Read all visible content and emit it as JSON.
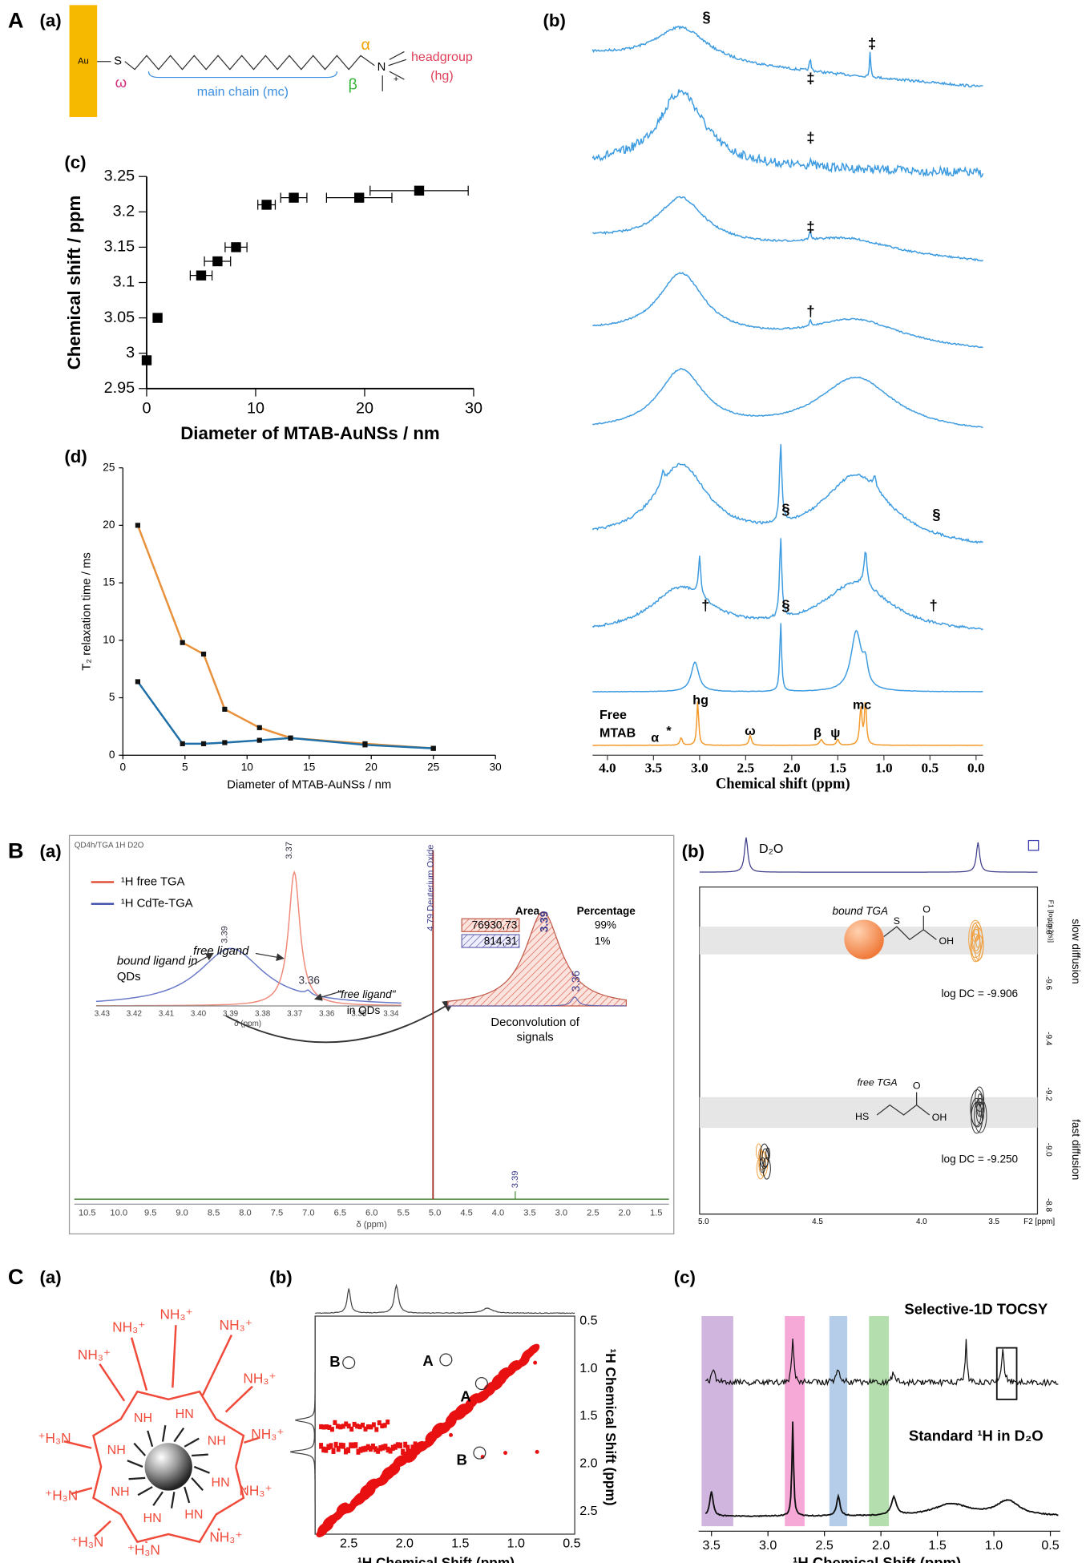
{
  "panels": {
    "A": {
      "label": "A",
      "a_label": "(a)",
      "b_label": "(b)",
      "c_label": "(c)",
      "d_label": "(d)",
      "structure": {
        "au": "Au",
        "s": "S",
        "n": "N",
        "plus": "+",
        "omega": "ω",
        "main_chain": "main chain (mc)",
        "beta": "β",
        "alpha": "α",
        "headgroup": "headgroup",
        "hg": "(hg)"
      },
      "spectra": {
        "marks": [
          "§",
          "‡",
          "‡",
          "‡",
          "‡",
          "†",
          "§",
          "§",
          "†",
          "§",
          "†"
        ],
        "free_mtab": [
          "Free",
          "MTAB"
        ],
        "peak_labels": [
          "hg",
          "mc",
          "α",
          "*",
          "ω",
          "β",
          "ψ"
        ],
        "xticks": [
          "4.0",
          "3.5",
          "3.0",
          "2.5",
          "2.0",
          "1.5",
          "1.0",
          "0.5",
          "0.0"
        ],
        "xlabel": "Chemical shift (ppm)"
      }
    },
    "B": {
      "label": "B",
      "a_label": "(a)",
      "b_label": "(b)",
      "a": {
        "header": "QD4h/TGA 1H D2O",
        "legend": [
          "¹H free TGA",
          "¹H CdTe-TGA"
        ],
        "inset_peaks": [
          "3.37",
          "3.39",
          "3.36"
        ],
        "free_ligand": "free ligand",
        "bound_ligand": [
          "bound ligand in",
          "QDs"
        ],
        "free_ligand_qds": [
          "\"free ligand\"",
          "in QDs"
        ],
        "table": {
          "header": [
            "Area",
            "Percentage"
          ],
          "rows": [
            [
              "76930,73",
              "99%"
            ],
            [
              "814,31",
              "1%"
            ]
          ]
        },
        "deconv_peaks": [
          "3.39",
          "3.36"
        ],
        "deconvolution": [
          "Deconvolution of",
          "signals"
        ],
        "d2o": "4.79 Deuterium Oxide",
        "main_peak": "3.39",
        "inset_xticks": [
          "3.43",
          "3.42",
          "3.41",
          "3.40",
          "3.39",
          "3.38",
          "3.37",
          "3.36",
          "3.35",
          "3.34"
        ],
        "inset_xlabel": "δ (ppm)",
        "xticks": [
          "10.5",
          "10.0",
          "9.5",
          "9.0",
          "8.5",
          "8.0",
          "7.5",
          "7.0",
          "6.5",
          "6.0",
          "5.5",
          "5.0",
          "4.5",
          "4.0",
          "3.5",
          "3.0",
          "2.5",
          "2.0",
          "1.5"
        ],
        "xlabel": "δ (ppm)"
      },
      "b": {
        "d2o": "D₂O",
        "f1": "F1 [log(m2/s)]",
        "yticks": [
          "-9.8",
          "-9.6",
          "-9.4",
          "-9.2",
          "-9.0",
          "-8.8"
        ],
        "slow": "slow diffusion",
        "fast": "fast diffusion",
        "bound": "bound TGA",
        "free": "free TGA",
        "bound_dc": "log DC = -9.906",
        "free_dc": "log DC = -9.250",
        "atoms": [
          "S",
          "O",
          "OH",
          "HS",
          "O",
          "OH"
        ],
        "xticks": [
          "5.0",
          "4.5",
          "4.0",
          "3.5"
        ],
        "f2": "F2 [ppm]"
      }
    },
    "C": {
      "label": "C",
      "a_label": "(a)",
      "b_label": "(b)",
      "c_label": "(c)",
      "a": {
        "outer": [
          "NH₃⁺",
          "NH₃⁺",
          "NH₃⁺",
          "NH₃⁺",
          "NH₃⁺",
          "NH₃⁺",
          "NH₃⁺",
          "⁺H₃N",
          "⁺H₃N",
          "⁺H₃N",
          "⁺H₃N",
          "NH₃⁺"
        ],
        "inner": [
          "HN",
          "HN",
          "HN",
          "NH",
          "NH",
          "NH",
          "HN",
          "NH"
        ]
      },
      "b": {
        "xticks": [
          "2.5",
          "2.0",
          "1.5",
          "1.0",
          "0.5"
        ],
        "yticks": [
          "0.5",
          "1.0",
          "1.5",
          "2.0",
          "2.5"
        ],
        "xlabel": "¹H Chemical Shift (ppm)",
        "ylabel": "¹H Chemical Shift (ppm)",
        "peaks": [
          "B",
          "A",
          "A",
          "B"
        ]
      },
      "c": {
        "top": "Selective-1D TOCSY",
        "bottom": "Standard ¹H  in D₂O",
        "xticks": [
          "3.5",
          "3.0",
          "2.5",
          "2.0",
          "1.5",
          "1.0",
          "0.5"
        ],
        "xlabel": "¹H Chemical Shift (ppm)"
      }
    }
  },
  "chart_data": [
    {
      "type": "scatter",
      "xlabel": "Diameter of MTAB-AuNSs / nm",
      "ylabel": "Chemical shift / ppm",
      "x": [
        0,
        1,
        5,
        6.5,
        8.2,
        11,
        13.5,
        19.5,
        25
      ],
      "values": [
        2.99,
        3.05,
        3.11,
        3.13,
        3.15,
        3.21,
        3.22,
        3.22,
        3.23
      ],
      "x_errors": [
        0.3,
        0.3,
        1.0,
        1.2,
        1.0,
        0.8,
        1.2,
        3.0,
        4.5
      ],
      "color": "#000000",
      "xlim": [
        0,
        30
      ],
      "xticks": [
        0,
        10,
        20,
        30
      ],
      "ylim": [
        2.95,
        3.25
      ],
      "yticks": [
        2.95,
        3,
        3.05,
        3.1,
        3.15,
        3.2,
        3.25
      ]
    },
    {
      "type": "line",
      "xlabel": "Diameter of MTAB-AuNSs / nm",
      "ylabel": "T₂ relaxation time / ms",
      "x": [
        1.2,
        4.8,
        6.5,
        8.2,
        11,
        13.5,
        19.5,
        25
      ],
      "series": [
        {
          "color": "#e8913a",
          "values": [
            20,
            9.8,
            8.8,
            4,
            2.4,
            1.5,
            1.0,
            0.6
          ]
        },
        {
          "color": "#1f6fa8",
          "values": [
            6.4,
            1.0,
            1.0,
            1.1,
            1.3,
            1.5,
            0.9,
            0.6
          ]
        }
      ],
      "xlim": [
        0,
        30
      ],
      "xticks": [
        0,
        5,
        10,
        15,
        20,
        25,
        30
      ],
      "ylim": [
        0,
        25
      ],
      "yticks": [
        0,
        5,
        10,
        15,
        20,
        25
      ]
    }
  ]
}
